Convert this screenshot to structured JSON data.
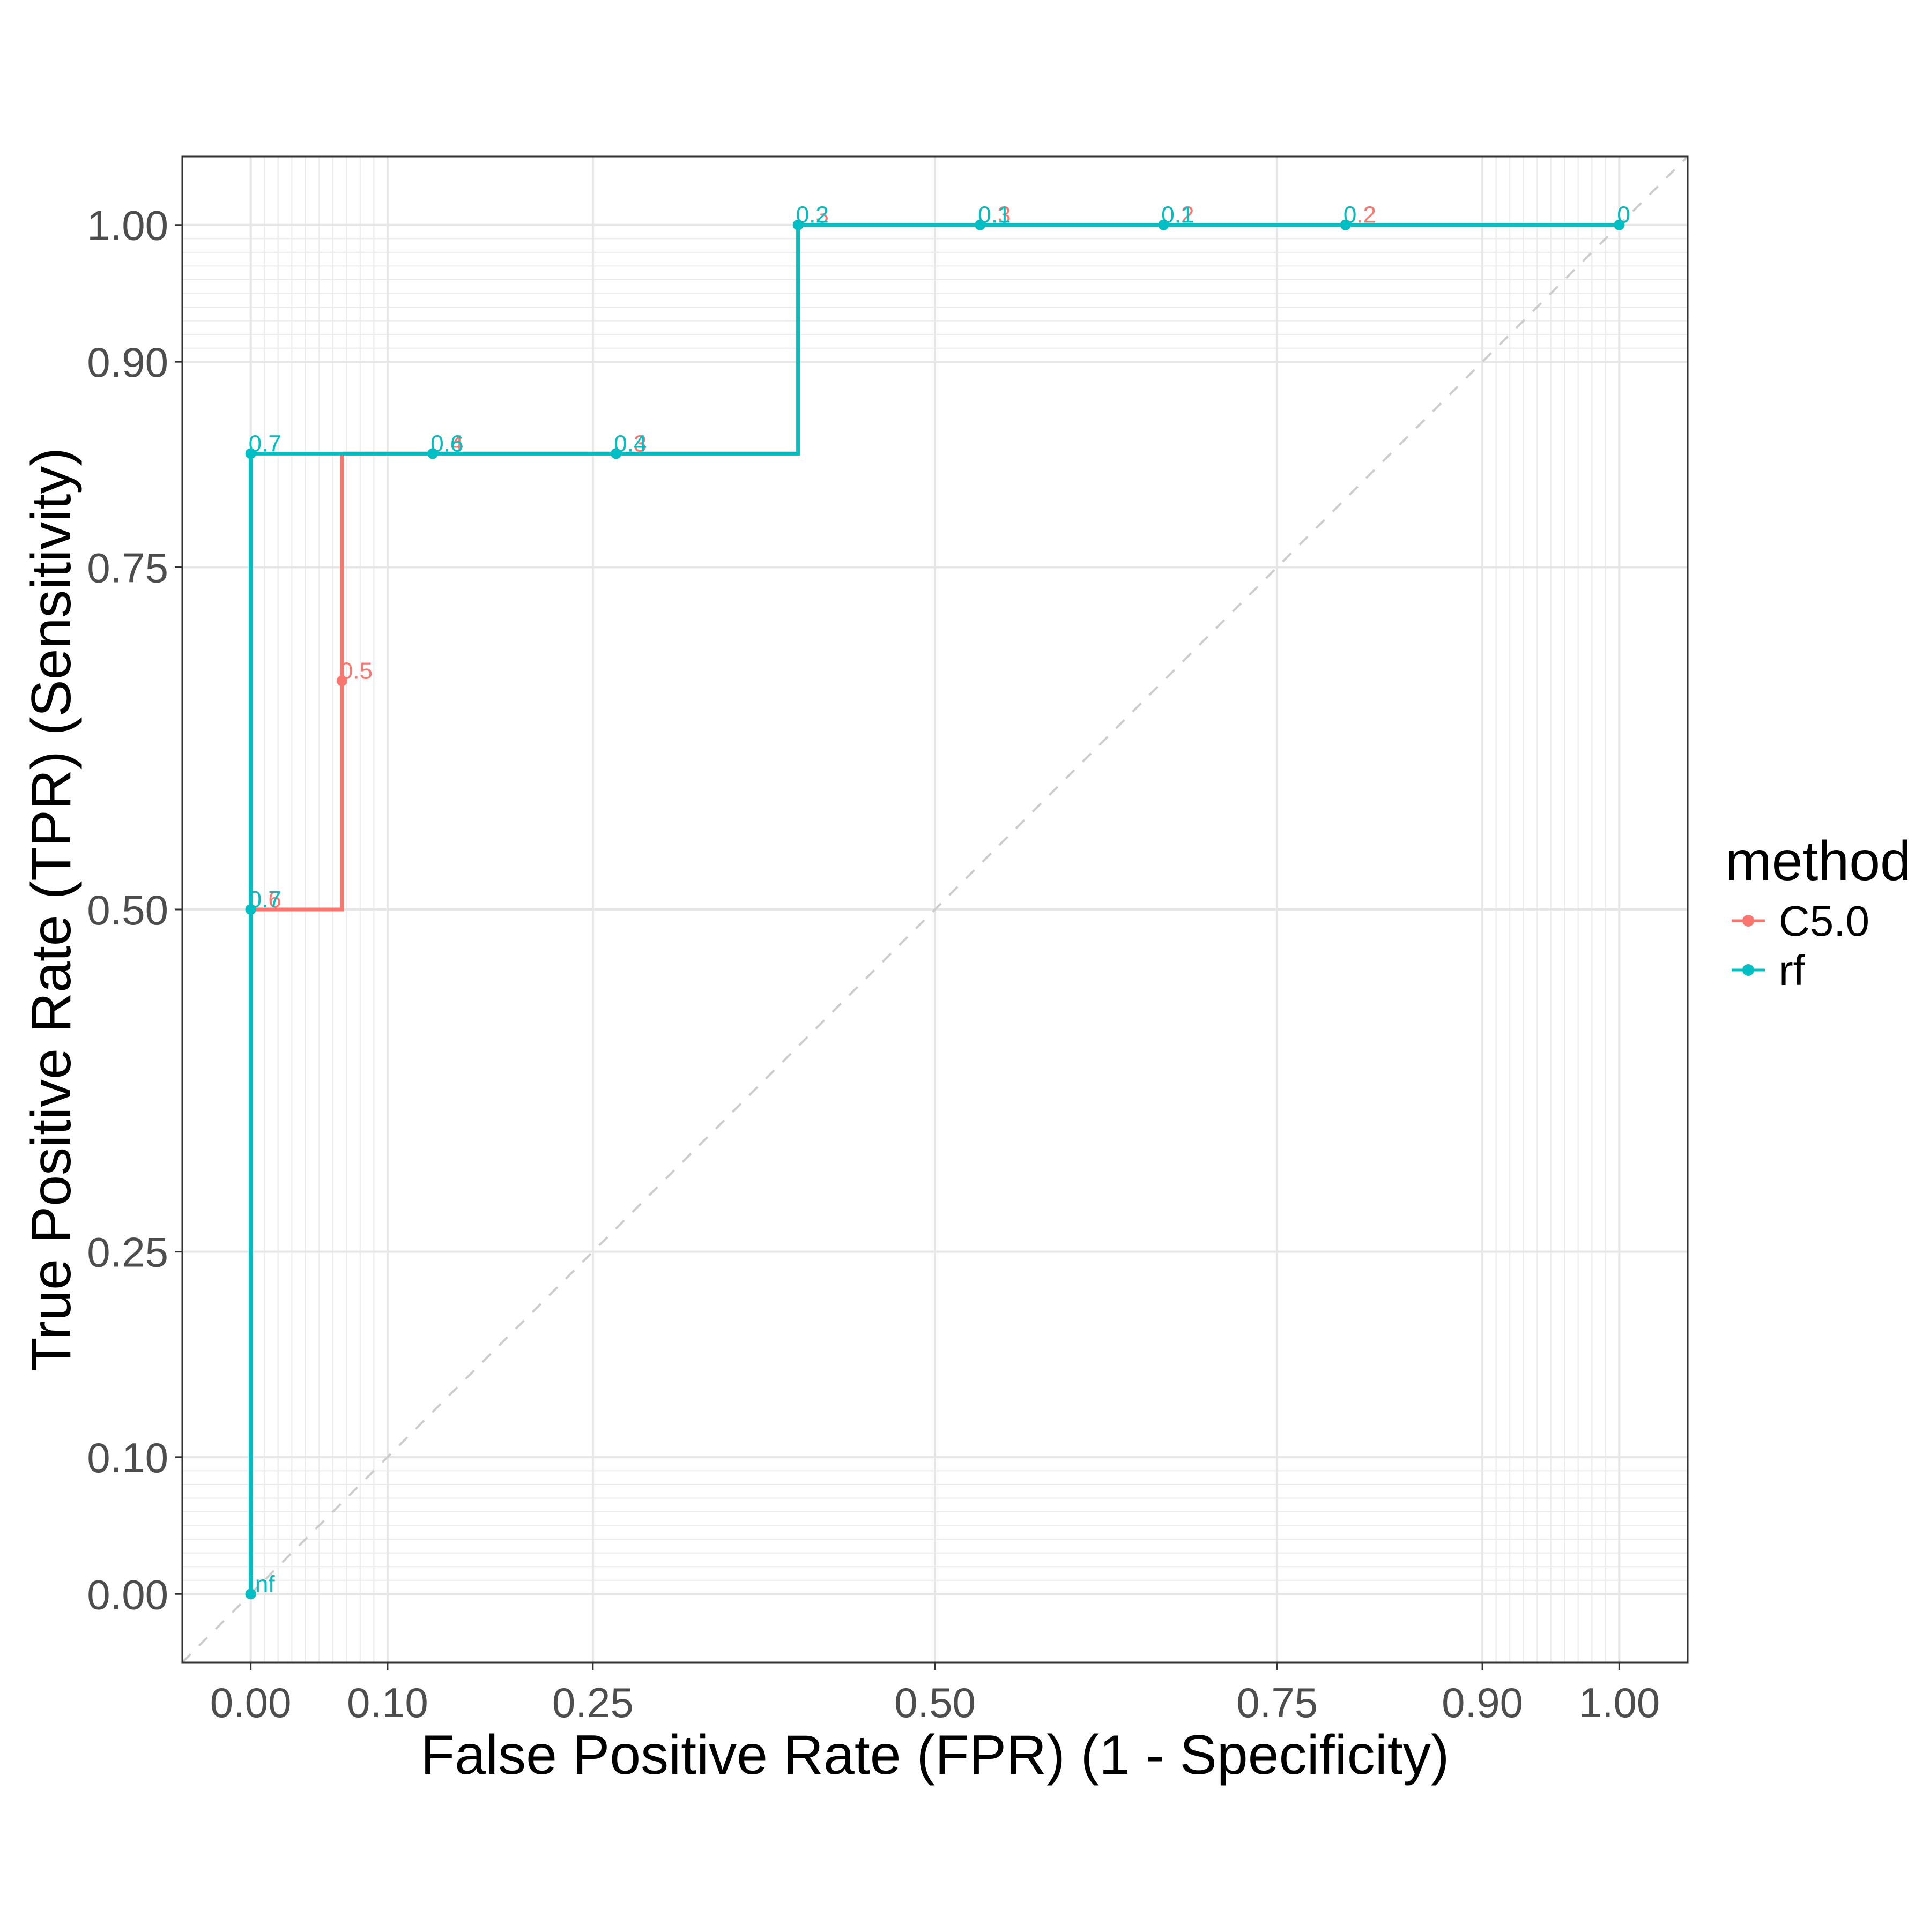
{
  "chart_data": {
    "type": "line",
    "subtype": "roc-step",
    "xlabel": "False Positive Rate (FPR) (1 - Specificity)",
    "ylabel": "True Positive Rate (TPR) (Sensitivity)",
    "xlim": [
      -0.05,
      1.05
    ],
    "ylim": [
      -0.05,
      1.05
    ],
    "x_ticks": [
      0.0,
      0.1,
      0.25,
      0.5,
      0.75,
      0.9,
      1.0
    ],
    "x_tick_labels": [
      "0.00",
      "0.10",
      "0.25",
      "0.50",
      "0.75",
      "0.90",
      "1.00"
    ],
    "y_ticks": [
      0.0,
      0.1,
      0.25,
      0.5,
      0.75,
      0.9,
      1.0
    ],
    "y_tick_labels": [
      "0.00",
      "0.10",
      "0.25",
      "0.50",
      "0.75",
      "0.90",
      "1.00"
    ],
    "x_minor_grid": [
      0.01,
      0.02,
      0.03,
      0.04,
      0.05,
      0.06,
      0.07,
      0.08,
      0.09,
      0.91,
      0.92,
      0.93,
      0.94,
      0.95,
      0.96,
      0.97,
      0.98,
      0.99
    ],
    "y_minor_grid": [
      0.01,
      0.02,
      0.03,
      0.04,
      0.05,
      0.06,
      0.07,
      0.08,
      0.09,
      0.91,
      0.92,
      0.93,
      0.94,
      0.95,
      0.96,
      0.97,
      0.98,
      0.99
    ],
    "grid": true,
    "diagonal_reference": true,
    "legend": {
      "title": "method",
      "position": "right",
      "entries": [
        "C5.0",
        "rf"
      ]
    },
    "series": [
      {
        "name": "C5.0",
        "color": "#F8766D",
        "points": [
          {
            "x": 0.0,
            "y": 0.0,
            "label": "Inf"
          },
          {
            "x": 0.0,
            "y": 0.5,
            "label": "0.6"
          },
          {
            "x": 0.0667,
            "y": 0.5,
            "label": ""
          },
          {
            "x": 0.0667,
            "y": 0.667,
            "label": "0.5"
          },
          {
            "x": 0.0667,
            "y": 0.833,
            "label": ""
          },
          {
            "x": 0.133,
            "y": 0.833,
            "label": "0.4"
          },
          {
            "x": 0.267,
            "y": 0.833,
            "label": "0.3"
          },
          {
            "x": 0.4,
            "y": 1.0,
            "label": "0.3"
          },
          {
            "x": 0.533,
            "y": 1.0,
            "label": "0.3"
          },
          {
            "x": 0.667,
            "y": 1.0,
            "label": "0.2"
          },
          {
            "x": 0.8,
            "y": 1.0,
            "label": "0.2"
          },
          {
            "x": 1.0,
            "y": 1.0,
            "label": "0"
          }
        ]
      },
      {
        "name": "rf",
        "color": "#00BFC4",
        "points": [
          {
            "x": 0.0,
            "y": 0.0,
            "label": "Inf"
          },
          {
            "x": 0.0,
            "y": 0.5,
            "label": "0.7"
          },
          {
            "x": 0.0,
            "y": 0.833,
            "label": "0.7"
          },
          {
            "x": 0.133,
            "y": 0.833,
            "label": "0.6"
          },
          {
            "x": 0.267,
            "y": 0.833,
            "label": "0.4"
          },
          {
            "x": 0.4,
            "y": 1.0,
            "label": "0.2"
          },
          {
            "x": 0.533,
            "y": 1.0,
            "label": "0.1"
          },
          {
            "x": 0.667,
            "y": 1.0,
            "label": "0.1"
          },
          {
            "x": 0.8,
            "y": 1.0,
            "label": "0"
          },
          {
            "x": 1.0,
            "y": 1.0,
            "label": "0"
          }
        ]
      }
    ]
  }
}
